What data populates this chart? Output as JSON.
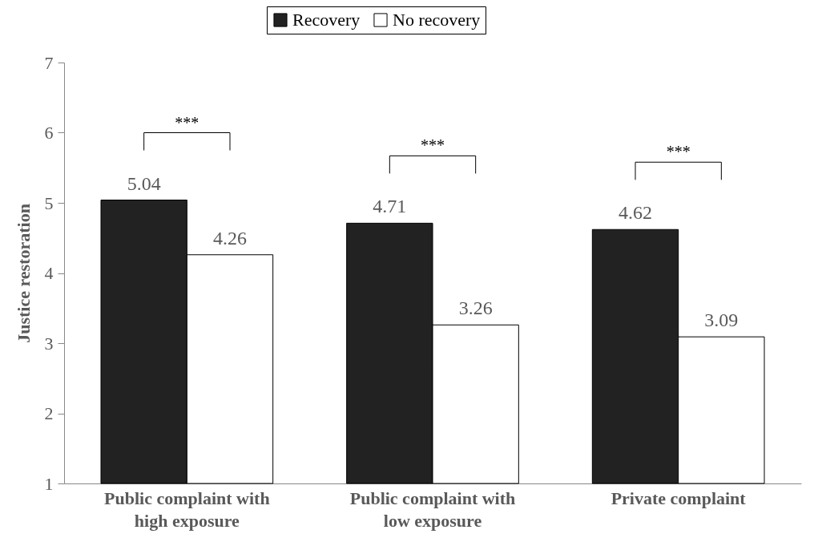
{
  "chart_data": {
    "type": "bar",
    "ylabel": "Justice restoration",
    "categories": [
      "Public complaint with high exposure",
      "Public complaint with low exposure",
      "Private complaint"
    ],
    "series": [
      {
        "name": "Recovery",
        "color": "#222222",
        "values": [
          5.04,
          4.71,
          4.62
        ]
      },
      {
        "name": "No recovery",
        "color": "#ffffff",
        "values": [
          4.26,
          3.26,
          3.09
        ]
      }
    ],
    "ylim": [
      1,
      7
    ],
    "yticks": [
      {
        "value": 1,
        "label": "1"
      },
      {
        "value": 2,
        "label": "2"
      },
      {
        "value": 3,
        "label": "3"
      },
      {
        "value": 4,
        "label": "4"
      },
      {
        "value": 5,
        "label": "5"
      },
      {
        "value": 6,
        "label": "6"
      },
      {
        "value": 7,
        "label": "7"
      }
    ],
    "grid": false,
    "legend": "top",
    "data_labels": true,
    "annotations": [
      "***",
      "***",
      "***"
    ]
  }
}
